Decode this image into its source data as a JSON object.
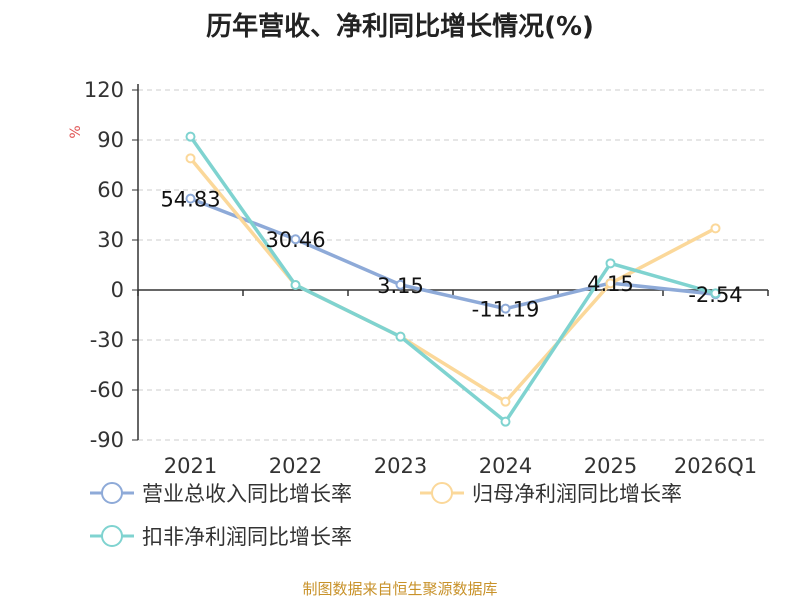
{
  "title": "历年营收、净利同比增长情况(%)",
  "source": "制图数据来自恒生聚源数据库",
  "chart_data": {
    "type": "line",
    "categories": [
      "2021",
      "2022",
      "2023",
      "2024",
      "2025",
      "2026Q1"
    ],
    "ylabel": "%",
    "ylim": [
      -90,
      120
    ],
    "yticks": [
      120,
      90,
      60,
      30,
      0,
      -30,
      -60,
      -90
    ],
    "grid": true,
    "legend_position": "bottom",
    "series": [
      {
        "name": "营业总收入同比增长率",
        "color": "#8eaad8",
        "values": [
          54.83,
          30.46,
          3.15,
          -11.19,
          4.15,
          -2.54
        ],
        "labels": [
          "54.83",
          "30.46",
          "3.15",
          "-11.19",
          "4.15",
          "-2.54"
        ]
      },
      {
        "name": "归母净利润同比增长率",
        "color": "#fbd89a",
        "values": [
          79,
          3,
          -28,
          -67,
          4,
          37
        ]
      },
      {
        "name": "扣非净利润同比增长率",
        "color": "#7fd3d0",
        "values": [
          92,
          3,
          -28,
          -79,
          16,
          -2
        ]
      }
    ]
  }
}
